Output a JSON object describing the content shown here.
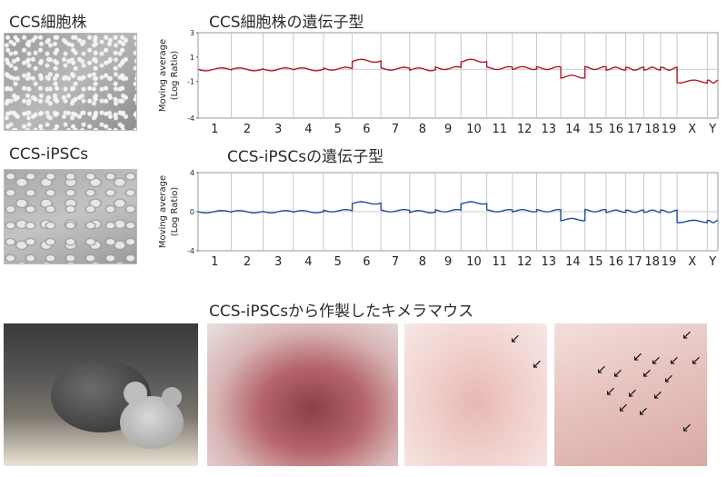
{
  "labels": {
    "ccs_line": "CCS細胞株",
    "ccs_genotype": "CCS細胞株の遺伝子型",
    "ipsc": "CCS-iPSCs",
    "ipsc_genotype": "CCS-iPSCsの遺伝子型",
    "chimera": "CCS-iPSCsから作製したキメラマウス"
  },
  "plot_common": {
    "ylabel": "Moving average",
    "ylabel2": "(Log Ratio)",
    "chromosomes": [
      "1",
      "2",
      "3",
      "4",
      "5",
      "6",
      "7",
      "8",
      "9",
      "10",
      "11",
      "12",
      "13",
      "14",
      "15",
      "16",
      "17",
      "18",
      "19",
      "X",
      "Y"
    ]
  },
  "chart_data": [
    {
      "type": "line",
      "title": "CCS細胞株の遺伝子型",
      "ylabel": "Moving average (Log Ratio)",
      "ylim": [
        -4,
        3
      ],
      "yticks": [
        "3",
        "1",
        "-1",
        "-4"
      ],
      "color": "#b2182b",
      "segments": [
        {
          "chr": "1",
          "value": 0.0
        },
        {
          "chr": "2",
          "value": 0.0
        },
        {
          "chr": "3",
          "value": 0.0
        },
        {
          "chr": "4",
          "value": 0.0
        },
        {
          "chr": "5",
          "value": 0.05
        },
        {
          "chr": "6",
          "value": 0.7
        },
        {
          "chr": "7",
          "value": 0.05
        },
        {
          "chr": "8",
          "value": 0.0
        },
        {
          "chr": "9",
          "value": 0.1
        },
        {
          "chr": "10",
          "value": 0.7
        },
        {
          "chr": "11",
          "value": 0.1
        },
        {
          "chr": "12",
          "value": 0.1
        },
        {
          "chr": "13",
          "value": 0.1
        },
        {
          "chr": "14",
          "value": -0.6
        },
        {
          "chr": "15",
          "value": 0.1
        },
        {
          "chr": "16",
          "value": 0.05
        },
        {
          "chr": "17",
          "value": 0.05
        },
        {
          "chr": "18",
          "value": 0.05
        },
        {
          "chr": "19",
          "value": 0.05
        },
        {
          "chr": "X",
          "value": -1.0
        },
        {
          "chr": "Y",
          "value": -1.0
        }
      ]
    },
    {
      "type": "line",
      "title": "CCS-iPSCsの遺伝子型",
      "ylabel": "Moving average (Log Ratio)",
      "ylim": [
        -4,
        4
      ],
      "yticks": [
        "4",
        "0",
        "-4"
      ],
      "color": "#1f4e9c",
      "segments": [
        {
          "chr": "1",
          "value": 0.0
        },
        {
          "chr": "2",
          "value": 0.0
        },
        {
          "chr": "3",
          "value": 0.0
        },
        {
          "chr": "4",
          "value": 0.0
        },
        {
          "chr": "5",
          "value": 0.1
        },
        {
          "chr": "6",
          "value": 0.9
        },
        {
          "chr": "7",
          "value": 0.1
        },
        {
          "chr": "8",
          "value": 0.0
        },
        {
          "chr": "9",
          "value": 0.1
        },
        {
          "chr": "10",
          "value": 0.9
        },
        {
          "chr": "11",
          "value": 0.1
        },
        {
          "chr": "12",
          "value": 0.1
        },
        {
          "chr": "13",
          "value": 0.1
        },
        {
          "chr": "14",
          "value": -0.8
        },
        {
          "chr": "15",
          "value": 0.1
        },
        {
          "chr": "16",
          "value": 0.05
        },
        {
          "chr": "17",
          "value": 0.05
        },
        {
          "chr": "18",
          "value": 0.05
        },
        {
          "chr": "19",
          "value": 0.05
        },
        {
          "chr": "X",
          "value": -1.0
        },
        {
          "chr": "Y",
          "value": -1.0
        }
      ]
    }
  ]
}
